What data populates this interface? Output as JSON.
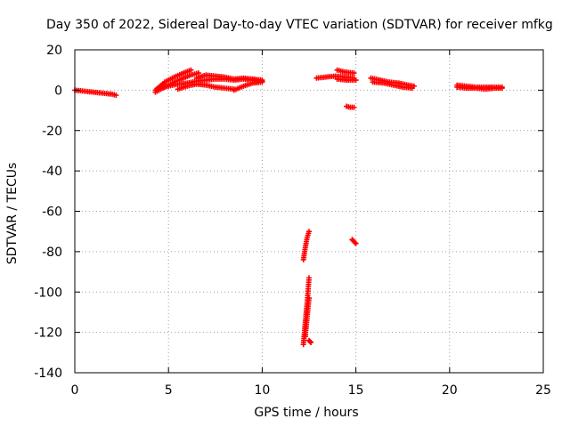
{
  "chart_data": {
    "type": "scatter",
    "title": "Day 350 of 2022, Sidereal Day-to-day VTEC variation (SDTVAR) for receiver mfkg",
    "xlabel": "GPS time / hours",
    "ylabel": "SDTVAR / TECUs",
    "xlim": [
      0,
      25
    ],
    "ylim": [
      -140,
      20
    ],
    "xticks": [
      0,
      5,
      10,
      15,
      20,
      25
    ],
    "yticks": [
      -140,
      -120,
      -100,
      -80,
      -60,
      -40,
      -20,
      0,
      20
    ],
    "grid": true,
    "marker_color": "#ff0000",
    "segments": [
      {
        "x": [
          0.0,
          0.5,
          1.0,
          1.5,
          2.0,
          2.2
        ],
        "y": [
          0.0,
          -0.5,
          -1.0,
          -1.5,
          -2.0,
          -2.5
        ]
      },
      {
        "x": [
          4.3,
          4.8,
          5.3,
          5.8,
          6.2
        ],
        "y": [
          0.0,
          4.0,
          6.5,
          8.5,
          10.0
        ]
      },
      {
        "x": [
          4.3,
          4.8,
          5.3,
          5.8,
          6.2,
          6.6
        ],
        "y": [
          -1.0,
          1.5,
          4.0,
          6.0,
          7.5,
          8.5
        ]
      },
      {
        "x": [
          4.5,
          5.0,
          5.5,
          6.0,
          6.5,
          7.0,
          7.5,
          8.0,
          8.5,
          9.0,
          9.5,
          10.0
        ],
        "y": [
          1.0,
          2.0,
          3.0,
          3.5,
          4.5,
          5.0,
          5.5,
          5.5,
          5.0,
          5.5,
          5.0,
          4.5
        ]
      },
      {
        "x": [
          6.5,
          7.0,
          7.5,
          8.0,
          8.5,
          9.0,
          9.5,
          10.0
        ],
        "y": [
          6.0,
          7.5,
          7.0,
          6.5,
          5.5,
          6.0,
          5.5,
          5.0
        ]
      },
      {
        "x": [
          5.5,
          6.0,
          6.5,
          7.0,
          7.5,
          8.0,
          8.5
        ],
        "y": [
          0.5,
          2.0,
          3.0,
          2.5,
          1.5,
          1.0,
          0.5
        ]
      },
      {
        "x": [
          8.5,
          9.0,
          9.5,
          10.0
        ],
        "y": [
          0.0,
          2.0,
          3.5,
          4.0
        ]
      },
      {
        "x": [
          12.9,
          13.4,
          13.9,
          14.4,
          14.9
        ],
        "y": [
          6.0,
          6.5,
          7.0,
          6.5,
          6.0
        ]
      },
      {
        "x": [
          14.0,
          14.4,
          14.9
        ],
        "y": [
          10.0,
          9.0,
          8.5
        ]
      },
      {
        "x": [
          14.0,
          14.5,
          15.0
        ],
        "y": [
          5.5,
          5.0,
          5.0
        ]
      },
      {
        "x": [
          14.5,
          14.7,
          14.9
        ],
        "y": [
          -8.0,
          -8.5,
          -8.5
        ]
      },
      {
        "x": [
          14.8,
          14.9,
          15.0
        ],
        "y": [
          -74.0,
          -75.0,
          -76.0
        ]
      },
      {
        "x": [
          15.8,
          16.3,
          16.8,
          17.3,
          17.8,
          18.1
        ],
        "y": [
          6.0,
          5.0,
          4.0,
          3.5,
          2.5,
          2.0
        ]
      },
      {
        "x": [
          15.9,
          16.5,
          17.0,
          17.5,
          18.0
        ],
        "y": [
          4.0,
          3.5,
          2.5,
          1.5,
          1.0
        ]
      },
      {
        "x": [
          20.4,
          20.9,
          21.4,
          21.9,
          22.4,
          22.8
        ],
        "y": [
          2.5,
          2.0,
          1.5,
          1.5,
          1.5,
          1.5
        ]
      },
      {
        "x": [
          20.4,
          20.9,
          21.4,
          21.9,
          22.4,
          22.8
        ],
        "y": [
          1.5,
          1.0,
          1.0,
          0.5,
          1.0,
          1.0
        ]
      },
      {
        "x": [
          12.2,
          12.3,
          12.4,
          12.5
        ],
        "y": [
          -84.0,
          -78.0,
          -73.0,
          -70.0
        ]
      },
      {
        "x": [
          12.2,
          12.3,
          12.4,
          12.5
        ],
        "y": [
          -126.0,
          -115.0,
          -105.0,
          -93.0
        ]
      },
      {
        "x": [
          12.3,
          12.4,
          12.5
        ],
        "y": [
          -122.0,
          -112.0,
          -103.0
        ]
      },
      {
        "x": [
          12.5,
          12.6
        ],
        "y": [
          -124.0,
          -125.0
        ]
      }
    ]
  }
}
